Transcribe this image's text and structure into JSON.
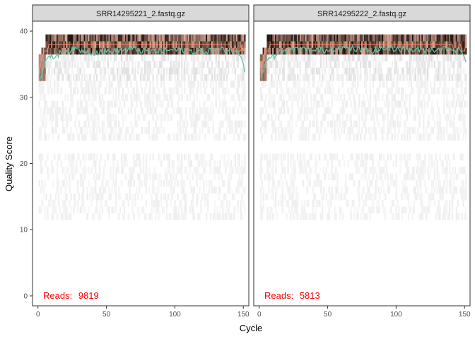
{
  "chart_data": {
    "type": "heatmap",
    "xlabel": "Cycle",
    "ylabel": "Quality Score",
    "xlim": [
      -4,
      154
    ],
    "ylim": [
      -1.5,
      41.5
    ],
    "x_ticks": [
      0,
      50,
      100,
      150
    ],
    "y_ticks": [
      0,
      10,
      20,
      30,
      40
    ],
    "colors": {
      "heat_low": "#f2f2f2",
      "heat_high": "#000000",
      "mean_line": "#66c2a5",
      "quartile_line": "#fc8d62",
      "reads_label": "#ff0000",
      "strip_bg": "#d9d9d9",
      "panel_border": "#333333"
    },
    "panels": [
      {
        "title": "SRR14295221_2.fastq.gz",
        "reads_label": "Reads:",
        "reads_value": "9819",
        "max_cycle": 151,
        "mean_quality_knots": [
          [
            1,
            32.5
          ],
          [
            3,
            33.5
          ],
          [
            5,
            35.5
          ],
          [
            10,
            36.0
          ],
          [
            15,
            36.5
          ],
          [
            20,
            37.0
          ],
          [
            30,
            37.2
          ],
          [
            40,
            36.8
          ],
          [
            50,
            36.9
          ],
          [
            60,
            37.1
          ],
          [
            70,
            37.3
          ],
          [
            80,
            36.9
          ],
          [
            90,
            37.0
          ],
          [
            100,
            37.2
          ],
          [
            110,
            37.0
          ],
          [
            120,
            36.9
          ],
          [
            130,
            37.1
          ],
          [
            140,
            37.2
          ],
          [
            145,
            36.8
          ],
          [
            148,
            36.5
          ],
          [
            150,
            35.0
          ],
          [
            151,
            33.8
          ]
        ]
      },
      {
        "title": "SRR14295222_2.fastq.gz",
        "reads_label": "Reads:",
        "reads_value": "5813",
        "max_cycle": 151,
        "mean_quality_knots": [
          [
            1,
            33.0
          ],
          [
            3,
            34.0
          ],
          [
            5,
            35.5
          ],
          [
            10,
            36.2
          ],
          [
            15,
            36.8
          ],
          [
            20,
            37.1
          ],
          [
            30,
            37.3
          ],
          [
            40,
            37.0
          ],
          [
            50,
            37.2
          ],
          [
            60,
            37.4
          ],
          [
            70,
            37.3
          ],
          [
            80,
            37.0
          ],
          [
            90,
            37.3
          ],
          [
            100,
            37.4
          ],
          [
            110,
            37.2
          ],
          [
            120,
            37.1
          ],
          [
            130,
            37.3
          ],
          [
            140,
            37.4
          ],
          [
            145,
            37.0
          ],
          [
            148,
            36.8
          ],
          [
            150,
            36.0
          ],
          [
            151,
            35.3
          ]
        ]
      }
    ]
  }
}
